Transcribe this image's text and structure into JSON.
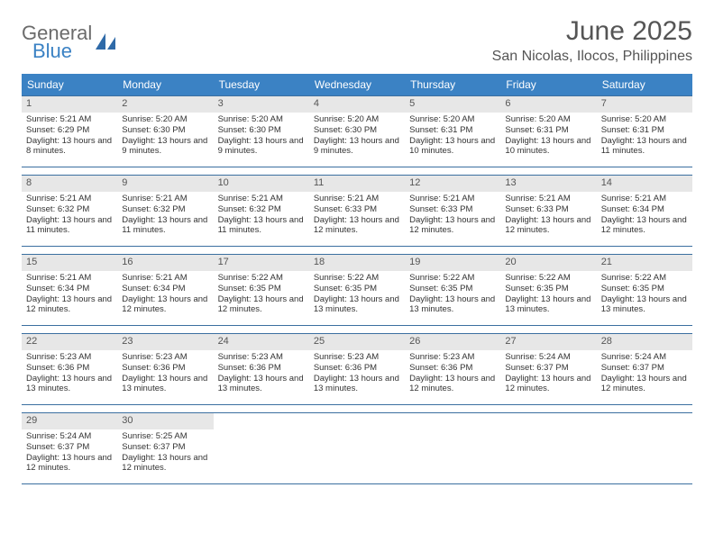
{
  "logo": {
    "word1": "General",
    "word2": "Blue"
  },
  "title": "June 2025",
  "location": "San Nicolas, Ilocos, Philippines",
  "colors": {
    "header_bg": "#3b82c4",
    "header_text": "#ffffff",
    "daynum_bg": "#e7e7e7",
    "week_border": "#3b6fa0",
    "body_text": "#333333",
    "title_text": "#555555",
    "logo_gray": "#6b6b6b",
    "logo_blue": "#3b82c4",
    "page_bg": "#ffffff"
  },
  "typography": {
    "title_fontsize": 30,
    "location_fontsize": 16,
    "dayheader_fontsize": 12,
    "daynum_fontsize": 11,
    "body_fontsize": 9.5,
    "logo_fontsize": 22
  },
  "day_names": [
    "Sunday",
    "Monday",
    "Tuesday",
    "Wednesday",
    "Thursday",
    "Friday",
    "Saturday"
  ],
  "weeks": [
    [
      {
        "n": "1",
        "sr": "5:21 AM",
        "ss": "6:29 PM",
        "dl": "13 hours and 8 minutes."
      },
      {
        "n": "2",
        "sr": "5:20 AM",
        "ss": "6:30 PM",
        "dl": "13 hours and 9 minutes."
      },
      {
        "n": "3",
        "sr": "5:20 AM",
        "ss": "6:30 PM",
        "dl": "13 hours and 9 minutes."
      },
      {
        "n": "4",
        "sr": "5:20 AM",
        "ss": "6:30 PM",
        "dl": "13 hours and 9 minutes."
      },
      {
        "n": "5",
        "sr": "5:20 AM",
        "ss": "6:31 PM",
        "dl": "13 hours and 10 minutes."
      },
      {
        "n": "6",
        "sr": "5:20 AM",
        "ss": "6:31 PM",
        "dl": "13 hours and 10 minutes."
      },
      {
        "n": "7",
        "sr": "5:20 AM",
        "ss": "6:31 PM",
        "dl": "13 hours and 11 minutes."
      }
    ],
    [
      {
        "n": "8",
        "sr": "5:21 AM",
        "ss": "6:32 PM",
        "dl": "13 hours and 11 minutes."
      },
      {
        "n": "9",
        "sr": "5:21 AM",
        "ss": "6:32 PM",
        "dl": "13 hours and 11 minutes."
      },
      {
        "n": "10",
        "sr": "5:21 AM",
        "ss": "6:32 PM",
        "dl": "13 hours and 11 minutes."
      },
      {
        "n": "11",
        "sr": "5:21 AM",
        "ss": "6:33 PM",
        "dl": "13 hours and 12 minutes."
      },
      {
        "n": "12",
        "sr": "5:21 AM",
        "ss": "6:33 PM",
        "dl": "13 hours and 12 minutes."
      },
      {
        "n": "13",
        "sr": "5:21 AM",
        "ss": "6:33 PM",
        "dl": "13 hours and 12 minutes."
      },
      {
        "n": "14",
        "sr": "5:21 AM",
        "ss": "6:34 PM",
        "dl": "13 hours and 12 minutes."
      }
    ],
    [
      {
        "n": "15",
        "sr": "5:21 AM",
        "ss": "6:34 PM",
        "dl": "13 hours and 12 minutes."
      },
      {
        "n": "16",
        "sr": "5:21 AM",
        "ss": "6:34 PM",
        "dl": "13 hours and 12 minutes."
      },
      {
        "n": "17",
        "sr": "5:22 AM",
        "ss": "6:35 PM",
        "dl": "13 hours and 12 minutes."
      },
      {
        "n": "18",
        "sr": "5:22 AM",
        "ss": "6:35 PM",
        "dl": "13 hours and 13 minutes."
      },
      {
        "n": "19",
        "sr": "5:22 AM",
        "ss": "6:35 PM",
        "dl": "13 hours and 13 minutes."
      },
      {
        "n": "20",
        "sr": "5:22 AM",
        "ss": "6:35 PM",
        "dl": "13 hours and 13 minutes."
      },
      {
        "n": "21",
        "sr": "5:22 AM",
        "ss": "6:35 PM",
        "dl": "13 hours and 13 minutes."
      }
    ],
    [
      {
        "n": "22",
        "sr": "5:23 AM",
        "ss": "6:36 PM",
        "dl": "13 hours and 13 minutes."
      },
      {
        "n": "23",
        "sr": "5:23 AM",
        "ss": "6:36 PM",
        "dl": "13 hours and 13 minutes."
      },
      {
        "n": "24",
        "sr": "5:23 AM",
        "ss": "6:36 PM",
        "dl": "13 hours and 13 minutes."
      },
      {
        "n": "25",
        "sr": "5:23 AM",
        "ss": "6:36 PM",
        "dl": "13 hours and 13 minutes."
      },
      {
        "n": "26",
        "sr": "5:23 AM",
        "ss": "6:36 PM",
        "dl": "13 hours and 12 minutes."
      },
      {
        "n": "27",
        "sr": "5:24 AM",
        "ss": "6:37 PM",
        "dl": "13 hours and 12 minutes."
      },
      {
        "n": "28",
        "sr": "5:24 AM",
        "ss": "6:37 PM",
        "dl": "13 hours and 12 minutes."
      }
    ],
    [
      {
        "n": "29",
        "sr": "5:24 AM",
        "ss": "6:37 PM",
        "dl": "13 hours and 12 minutes."
      },
      {
        "n": "30",
        "sr": "5:25 AM",
        "ss": "6:37 PM",
        "dl": "13 hours and 12 minutes."
      },
      null,
      null,
      null,
      null,
      null
    ]
  ],
  "labels": {
    "sunrise": "Sunrise:",
    "sunset": "Sunset:",
    "daylight": "Daylight:"
  }
}
